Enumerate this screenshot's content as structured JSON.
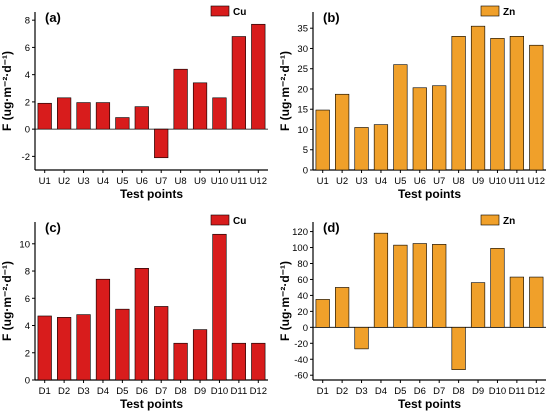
{
  "colors": {
    "cu": "#d81c1c",
    "zn": "#f0a02a",
    "axis": "#000000"
  },
  "chart_data": [
    {
      "type": "bar",
      "panel": "(a)",
      "legend": "Cu",
      "legend_position": "top-right",
      "xlabel": "Test points",
      "ylabel": "F (ug·m⁻²·d⁻¹)",
      "categories": [
        "U1",
        "U2",
        "U3",
        "U4",
        "U5",
        "U6",
        "U7",
        "U8",
        "U9",
        "U10",
        "U11",
        "U12"
      ],
      "values": [
        1.9,
        2.3,
        1.95,
        1.95,
        0.85,
        1.65,
        -2.1,
        4.4,
        3.4,
        2.3,
        6.8,
        7.7
      ],
      "ylim": [
        -3,
        8.6
      ],
      "yticks": [
        -2,
        0,
        2,
        4,
        6,
        8
      ],
      "color": "cu"
    },
    {
      "type": "bar",
      "panel": "(b)",
      "legend": "Zn",
      "legend_position": "top-right",
      "xlabel": "Test points",
      "ylabel": "F (ug·m⁻²·d⁻¹)",
      "categories": [
        "U1",
        "U2",
        "U3",
        "U4",
        "U5",
        "U6",
        "U7",
        "U8",
        "U9",
        "U10",
        "U11",
        "U12"
      ],
      "values": [
        14.8,
        18.7,
        10.5,
        11.2,
        26.0,
        20.3,
        20.8,
        33.0,
        35.5,
        32.5,
        33.0,
        30.8
      ],
      "ylim": [
        0,
        39
      ],
      "yticks": [
        0,
        5,
        10,
        15,
        20,
        25,
        30,
        35
      ],
      "color": "zn"
    },
    {
      "type": "bar",
      "panel": "(c)",
      "legend": "Cu",
      "legend_position": "top-right",
      "xlabel": "Test points",
      "ylabel": "F (ug·m⁻²·d⁻¹)",
      "categories": [
        "D1",
        "D2",
        "D3",
        "D4",
        "D5",
        "D6",
        "D7",
        "D8",
        "D9",
        "D10",
        "D11",
        "D12"
      ],
      "values": [
        4.7,
        4.6,
        4.8,
        7.4,
        5.2,
        8.2,
        5.4,
        2.7,
        3.7,
        10.7,
        2.7,
        2.7
      ],
      "ylim": [
        0,
        11.6
      ],
      "yticks": [
        0,
        2,
        4,
        6,
        8,
        10
      ],
      "color": "cu"
    },
    {
      "type": "bar",
      "panel": "(d)",
      "legend": "Zn",
      "legend_position": "top-right",
      "xlabel": "Test points",
      "ylabel": "F (ug·m⁻²·d⁻¹)",
      "categories": [
        "D1",
        "D2",
        "D3",
        "D4",
        "D5",
        "D6",
        "D7",
        "D8",
        "D9",
        "D10",
        "D11",
        "D12"
      ],
      "values": [
        35,
        50,
        -27,
        118,
        103,
        105,
        104,
        -53,
        56,
        99,
        63,
        63
      ],
      "ylim": [
        -66,
        132
      ],
      "yticks": [
        -60,
        -40,
        -20,
        0,
        20,
        40,
        60,
        80,
        100,
        120
      ],
      "color": "zn"
    }
  ]
}
